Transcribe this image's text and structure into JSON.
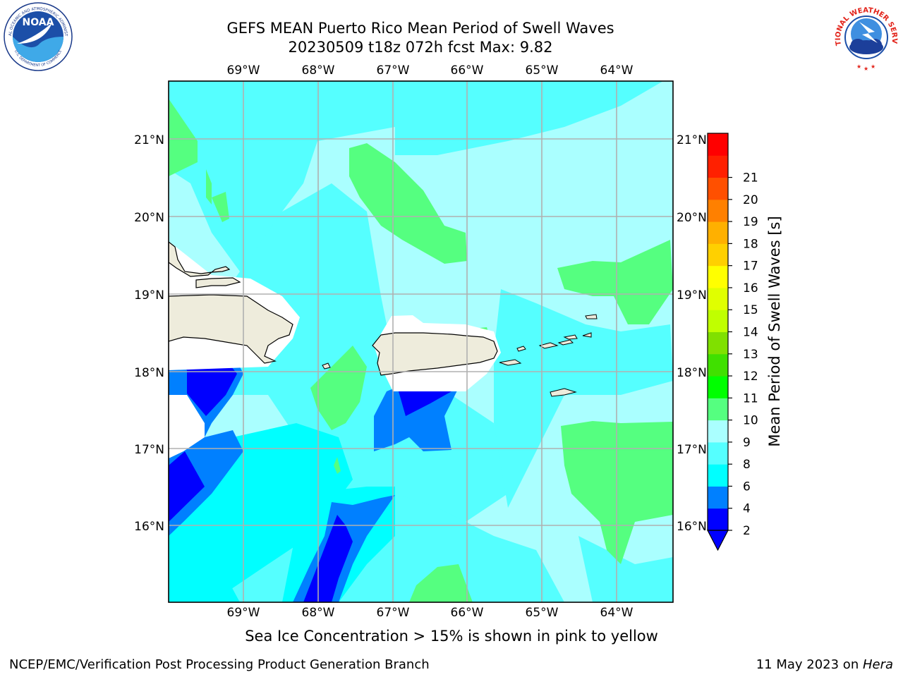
{
  "header": {
    "title_line1": "GEFS MEAN Puerto Rico Mean Period of Swell Waves",
    "title_line2": "20230509 t18z 072h fcst   Max: 9.82"
  },
  "logos": {
    "noaa_text": "NOAA",
    "noaa_ring_text": "NATIONAL OCEANIC AND ATMOSPHERIC ADMINISTRATION",
    "noaa_ring_text_bottom": "U.S. DEPARTMENT OF COMMERCE",
    "nws_ring_text": "NATIONAL WEATHER SERVICE"
  },
  "map": {
    "lon_labels": [
      "69°W",
      "68°W",
      "67°W",
      "66°W",
      "65°W",
      "64°W"
    ],
    "lat_labels": [
      "21°N",
      "20°N",
      "19°N",
      "18°N",
      "17°N",
      "16°N"
    ],
    "lon_range": [
      -70.0,
      -63.3
    ],
    "lat_range": [
      15.0,
      21.75
    ],
    "grid": true
  },
  "colorbar": {
    "label": "Mean Period of Swell Waves [s]",
    "ticks": [
      "2",
      "4",
      "6",
      "8",
      "9",
      "10",
      "11",
      "12",
      "13",
      "14",
      "15",
      "16",
      "17",
      "18",
      "19",
      "20",
      "21"
    ],
    "colors": [
      "#0000ff",
      "#0080ff",
      "#00ffff",
      "#55ffff",
      "#aaffff",
      "#55ff80",
      "#00ff00",
      "#40e000",
      "#80e000",
      "#c0ff00",
      "#e0ff00",
      "#ffff00",
      "#ffd000",
      "#ffb000",
      "#ff8000",
      "#ff5000",
      "#ff2000",
      "#ff0000"
    ],
    "under_color": "#0000ff"
  },
  "field_colors": {
    "ocean_light": "#aaffff",
    "ocean_mid": "#55ffff",
    "ocean_cyan": "#00ffff",
    "green": "#55ff80",
    "blue": "#0080ff",
    "deep_blue": "#0000ff",
    "land": "#eeecdc"
  },
  "note": "Sea Ice Concentration > 15% is shown in pink to yellow",
  "footer": {
    "left": "NCEP/EMC/Verification Post Processing Product Generation Branch",
    "right_date": "11 May 2023 on ",
    "right_host": "Hera"
  }
}
